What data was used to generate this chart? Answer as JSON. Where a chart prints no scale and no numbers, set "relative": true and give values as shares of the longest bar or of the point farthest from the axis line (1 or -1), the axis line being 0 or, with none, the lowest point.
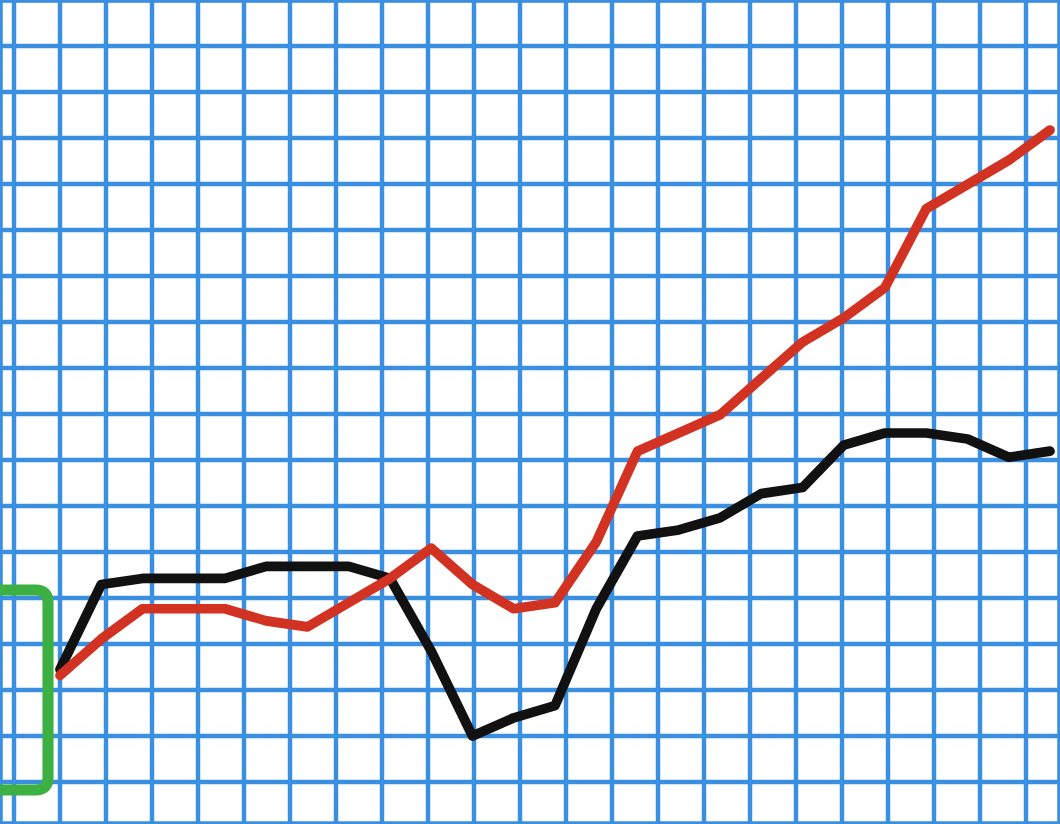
{
  "chart_data": {
    "type": "line",
    "relative": true,
    "grid": true,
    "categories": [
      null,
      null,
      null,
      null,
      null,
      null,
      null,
      null,
      null,
      null,
      null,
      null,
      null,
      null,
      null,
      null,
      null,
      null,
      null,
      null,
      null,
      null,
      null,
      null,
      null
    ],
    "series": [
      {
        "color": "#111111",
        "values": [
          0.11,
          0.25,
          0.26,
          0.26,
          0.26,
          0.28,
          0.28,
          0.28,
          0.26,
          0.14,
          0.0,
          0.03,
          0.05,
          0.21,
          0.33,
          0.34,
          0.36,
          0.4,
          0.41,
          0.48,
          0.5,
          0.5,
          0.49,
          0.46,
          0.47
        ]
      },
      {
        "color": "#d23222",
        "values": [
          0.1,
          0.16,
          0.21,
          0.21,
          0.21,
          0.19,
          0.18,
          0.22,
          0.26,
          0.31,
          0.25,
          0.21,
          0.22,
          0.32,
          0.47,
          0.5,
          0.53,
          0.59,
          0.65,
          0.69,
          0.74,
          0.87,
          0.91,
          0.95,
          1.0
        ]
      }
    ]
  }
}
